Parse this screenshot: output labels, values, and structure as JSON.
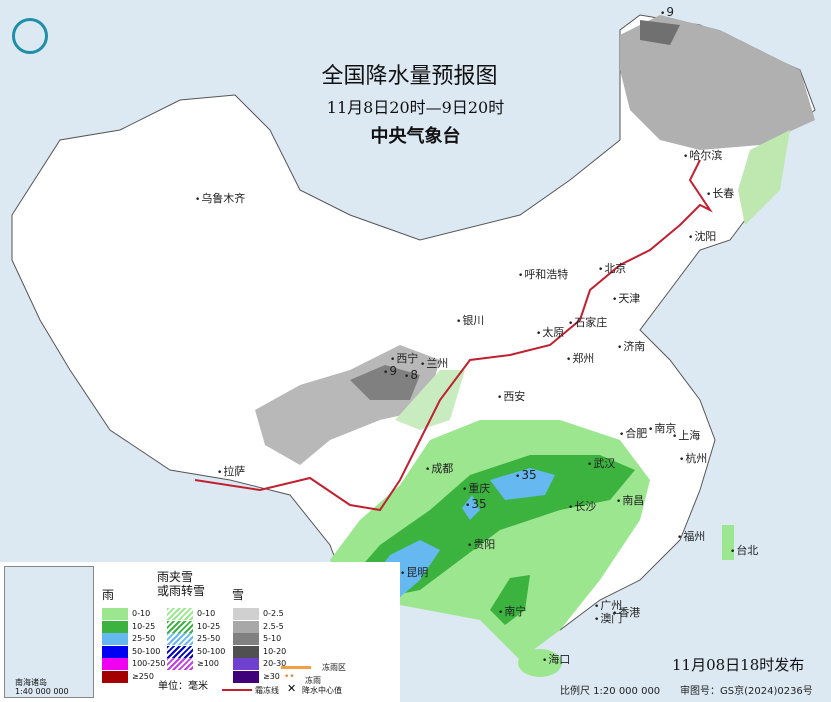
{
  "header": {
    "title": "全国降水量预报图",
    "period": "11月8日20时—9日20时",
    "agency": "中央气象台"
  },
  "cities": [
    "乌鲁木齐",
    "哈尔滨",
    "长春",
    "沈阳",
    "北京",
    "天津",
    "呼和浩特",
    "石家庄",
    "太原",
    "济南",
    "银川",
    "西宁",
    "兰州",
    "西安",
    "郑州",
    "合肥",
    "南京",
    "上海",
    "杭州",
    "武汉",
    "成都",
    "重庆",
    "拉萨",
    "长沙",
    "南昌",
    "贵阳",
    "昆明",
    "福州",
    "台北",
    "南宁",
    "广州",
    "澳门",
    "香港",
    "海口"
  ],
  "precip_centers": [
    "9",
    "9",
    "8",
    "35",
    "35",
    "55"
  ],
  "legend": {
    "rain": {
      "title": "雨",
      "items": [
        {
          "label": "0-10",
          "color": "#9be68e"
        },
        {
          "label": "10-25",
          "color": "#3cb33f"
        },
        {
          "label": "25-50",
          "color": "#66b8f0"
        },
        {
          "label": "50-100",
          "color": "#0000f2"
        },
        {
          "label": "100-250",
          "color": "#f000f0"
        },
        {
          "label": "≥250",
          "color": "#a40000"
        }
      ]
    },
    "sleet": {
      "title": "雨夹雪或雨转雪",
      "title_line1": "雨夹雪",
      "title_line2": "或雨转雪",
      "items": [
        {
          "label": "0-10",
          "color": "#9be68e"
        },
        {
          "label": "10-25",
          "color": "#3cb33f"
        },
        {
          "label": "25-50",
          "color": "#66b8f0"
        },
        {
          "label": "50-100",
          "color": "#0000c0"
        },
        {
          "label": "≥100",
          "color": "#c040e0"
        }
      ]
    },
    "snow": {
      "title": "雪",
      "items": [
        {
          "label": "0-2.5",
          "color": "#d0d0d0"
        },
        {
          "label": "2.5-5",
          "color": "#a8a8a8"
        },
        {
          "label": "5-10",
          "color": "#808080"
        },
        {
          "label": "10-20",
          "color": "#505050"
        },
        {
          "label": "20-30",
          "color": "#7040d0"
        },
        {
          "label": "≥30",
          "color": "#40007a"
        }
      ]
    },
    "unit": "单位：毫米",
    "symbols": [
      {
        "label": "冻雨区",
        "color": "#f0a040"
      },
      {
        "label": "冻雨",
        "color": "#f08030"
      },
      {
        "label": "霜冻线",
        "color": "#c02030"
      },
      {
        "label": "降水中心值",
        "color": "#000000"
      }
    ]
  },
  "footer": {
    "issued": "11月08日18时发布",
    "scale": "比例尺 1:20 000 000",
    "approval": "审图号：GS京(2024)0236号",
    "inset_scale": "1:40 000 000",
    "inset_title": "南海诸岛"
  }
}
